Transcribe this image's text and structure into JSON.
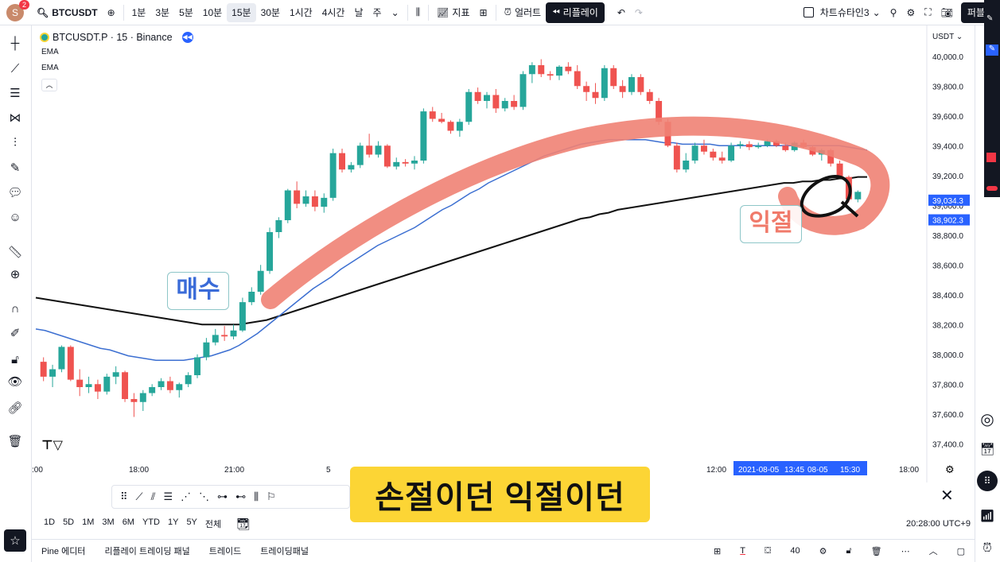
{
  "topbar": {
    "avatar_letter": "S",
    "avatar_badge": "2",
    "symbol": "BTCUSDT",
    "intervals": [
      "1분",
      "3분",
      "5분",
      "10분",
      "15분",
      "30분",
      "1시간",
      "4시간",
      "날",
      "주"
    ],
    "active_interval": "15분",
    "indicators_label": "지표",
    "alerts_label": "얼러트",
    "replay_label": "리플레이",
    "layout_name": "차트슈타인3",
    "publish_label": "퍼블리"
  },
  "chart_header": {
    "title": "BTCUSDT.P · 15 · Binance",
    "ema1": "EMA",
    "ema2": "EMA",
    "currency": "USDT"
  },
  "chart_data": {
    "type": "candlestick",
    "ylim": [
      37300,
      40100
    ],
    "y_ticks": [
      "40,000.0",
      "39,800.0",
      "39,600.0",
      "39,400.0",
      "39,200.0",
      "39,000.0",
      "38,800.0",
      "38,600.0",
      "38,400.0",
      "38,200.0",
      "38,000.0",
      "37,800.0",
      "37,600.0",
      "37,400.0"
    ],
    "x_ticks": [
      ":00",
      "18:00",
      "21:00",
      "5",
      "12:00",
      "18:00"
    ],
    "price_labels": [
      "39,034.3",
      "38,902.3"
    ],
    "crosshair_time_labels": [
      "2021-08-05",
      "13:45",
      "08-05",
      "15:30"
    ],
    "candles": [
      [
        37950,
        37980,
        37820,
        37850
      ],
      [
        37850,
        37930,
        37780,
        37900
      ],
      [
        37900,
        38060,
        37880,
        38050
      ],
      [
        38050,
        38060,
        37820,
        37830
      ],
      [
        37830,
        37900,
        37720,
        37780
      ],
      [
        37780,
        37850,
        37740,
        37800
      ],
      [
        37800,
        37830,
        37700,
        37750
      ],
      [
        37750,
        37870,
        37730,
        37850
      ],
      [
        37850,
        37920,
        37800,
        37880
      ],
      [
        37880,
        37890,
        37680,
        37700
      ],
      [
        37700,
        37740,
        37580,
        37680
      ],
      [
        37680,
        37760,
        37620,
        37740
      ],
      [
        37740,
        37800,
        37720,
        37780
      ],
      [
        37780,
        37840,
        37760,
        37820
      ],
      [
        37820,
        37850,
        37740,
        37760
      ],
      [
        37760,
        37810,
        37710,
        37800
      ],
      [
        37800,
        37880,
        37780,
        37860
      ],
      [
        37860,
        38000,
        37840,
        37980
      ],
      [
        37980,
        38110,
        37960,
        38080
      ],
      [
        38080,
        38170,
        38060,
        38130
      ],
      [
        38130,
        38190,
        38090,
        38120
      ],
      [
        38120,
        38200,
        38100,
        38160
      ],
      [
        38160,
        38380,
        38150,
        38350
      ],
      [
        38350,
        38450,
        38330,
        38420
      ],
      [
        38420,
        38600,
        38400,
        38560
      ],
      [
        38560,
        38850,
        38540,
        38820
      ],
      [
        38820,
        38920,
        38780,
        38900
      ],
      [
        38900,
        39110,
        38880,
        39100
      ],
      [
        39100,
        39160,
        38980,
        39010
      ],
      [
        39010,
        39100,
        38990,
        39060
      ],
      [
        39060,
        39100,
        38960,
        38990
      ],
      [
        38990,
        39080,
        38950,
        39050
      ],
      [
        39050,
        39380,
        39030,
        39350
      ],
      [
        39350,
        39380,
        39220,
        39240
      ],
      [
        39240,
        39290,
        39220,
        39270
      ],
      [
        39270,
        39420,
        39250,
        39400
      ],
      [
        39400,
        39480,
        39320,
        39340
      ],
      [
        39340,
        39430,
        39320,
        39400
      ],
      [
        39400,
        39410,
        39250,
        39260
      ],
      [
        39260,
        39320,
        39240,
        39290
      ],
      [
        39290,
        39310,
        39260,
        39280
      ],
      [
        39280,
        39330,
        39240,
        39300
      ],
      [
        39300,
        39650,
        39280,
        39630
      ],
      [
        39630,
        39660,
        39560,
        39580
      ],
      [
        39580,
        39620,
        39550,
        39560
      ],
      [
        39560,
        39570,
        39480,
        39500
      ],
      [
        39500,
        39580,
        39460,
        39560
      ],
      [
        39560,
        39780,
        39540,
        39760
      ],
      [
        39760,
        39790,
        39680,
        39700
      ],
      [
        39700,
        39760,
        39650,
        39740
      ],
      [
        39740,
        39780,
        39620,
        39650
      ],
      [
        39650,
        39720,
        39630,
        39700
      ],
      [
        39700,
        39740,
        39640,
        39660
      ],
      [
        39660,
        39900,
        39640,
        39880
      ],
      [
        39880,
        39960,
        39820,
        39940
      ],
      [
        39940,
        39980,
        39860,
        39880
      ],
      [
        39880,
        39900,
        39840,
        39870
      ],
      [
        39870,
        39940,
        39840,
        39930
      ],
      [
        39930,
        39960,
        39880,
        39900
      ],
      [
        39900,
        39940,
        39780,
        39800
      ],
      [
        39800,
        39830,
        39700,
        39760
      ],
      [
        39760,
        39820,
        39680,
        39720
      ],
      [
        39720,
        39940,
        39700,
        39920
      ],
      [
        39920,
        39940,
        39780,
        39800
      ],
      [
        39800,
        39840,
        39720,
        39760
      ],
      [
        39760,
        39880,
        39740,
        39860
      ],
      [
        39860,
        39880,
        39740,
        39760
      ],
      [
        39760,
        39780,
        39680,
        39700
      ],
      [
        39700,
        39720,
        39540,
        39560
      ],
      [
        39560,
        39580,
        39390,
        39400
      ],
      [
        39400,
        39420,
        39220,
        39240
      ],
      [
        39240,
        39350,
        39220,
        39300
      ],
      [
        39300,
        39420,
        39280,
        39400
      ],
      [
        39400,
        39440,
        39340,
        39360
      ],
      [
        39360,
        39380,
        39300,
        39320
      ],
      [
        39320,
        39360,
        39280,
        39300
      ],
      [
        39300,
        39420,
        39290,
        39400
      ],
      [
        39400,
        39430,
        39380,
        39410
      ],
      [
        39410,
        39430,
        39370,
        39390
      ],
      [
        39390,
        39420,
        39380,
        39400
      ],
      [
        39400,
        39440,
        39390,
        39430
      ],
      [
        39430,
        39440,
        39390,
        39400
      ],
      [
        39400,
        39420,
        39360,
        39370
      ],
      [
        39370,
        39430,
        39360,
        39420
      ],
      [
        39420,
        39440,
        39380,
        39390
      ],
      [
        39390,
        39400,
        39330,
        39340
      ],
      [
        39340,
        39380,
        39300,
        39370
      ],
      [
        39370,
        39380,
        39260,
        39280
      ],
      [
        39280,
        39300,
        39180,
        39190
      ],
      [
        39190,
        39200,
        39020,
        39040
      ],
      [
        39040,
        39100,
        39020,
        39090
      ]
    ],
    "ema_blue": [
      38170,
      38160,
      38140,
      38120,
      38100,
      38080,
      38060,
      38040,
      38030,
      38010,
      37990,
      37980,
      37970,
      37960,
      37960,
      37960,
      37960,
      37970,
      37980,
      37990,
      38010,
      38030,
      38060,
      38100,
      38140,
      38190,
      38240,
      38290,
      38340,
      38390,
      38440,
      38480,
      38520,
      38570,
      38610,
      38650,
      38690,
      38730,
      38760,
      38790,
      38820,
      38850,
      38890,
      38930,
      38970,
      39000,
      39040,
      39080,
      39110,
      39150,
      39180,
      39210,
      39240,
      39270,
      39300,
      39330,
      39350,
      39370,
      39390,
      39410,
      39420,
      39430,
      39440,
      39440,
      39440,
      39440,
      39440,
      39430,
      39420,
      39420,
      39410,
      39410,
      39410,
      39410,
      39400,
      39400,
      39400,
      39400,
      39400,
      39400,
      39400,
      39400,
      39400,
      39400,
      39400,
      39400,
      39400,
      39400,
      39390,
      39380,
      39370
    ],
    "ema_black": [
      38380,
      38370,
      38360,
      38350,
      38340,
      38330,
      38320,
      38310,
      38300,
      38290,
      38280,
      38270,
      38260,
      38250,
      38240,
      38230,
      38220,
      38210,
      38200,
      38200,
      38200,
      38200,
      38200,
      38210,
      38220,
      38230,
      38250,
      38270,
      38290,
      38310,
      38330,
      38350,
      38370,
      38390,
      38410,
      38430,
      38450,
      38470,
      38490,
      38510,
      38530,
      38550,
      38570,
      38590,
      38610,
      38630,
      38650,
      38670,
      38690,
      38710,
      38730,
      38750,
      38770,
      38790,
      38810,
      38830,
      38850,
      38870,
      38890,
      38910,
      38920,
      38940,
      38950,
      38970,
      38980,
      38990,
      39000,
      39010,
      39020,
      39030,
      39040,
      39050,
      39060,
      39070,
      39080,
      39090,
      39100,
      39110,
      39120,
      39130,
      39140,
      39150,
      39150,
      39160,
      39160,
      39170,
      39170,
      39180,
      39180,
      39190,
      39190
    ]
  },
  "annotations": {
    "buy_label": "매수",
    "take_profit_label": "익절"
  },
  "bottombar": {
    "ranges": [
      "1D",
      "5D",
      "1M",
      "3M",
      "6M",
      "YTD",
      "1Y",
      "5Y",
      "전체"
    ],
    "clock": "20:28:00 UTC+9"
  },
  "footer": {
    "tabs": [
      "Pine 에디터",
      "리플레이 트레이딩 패널",
      "트레이드",
      "트레이딩패널"
    ],
    "size_value": "40"
  },
  "subtitle": "손절이던 익절이던",
  "colors": {
    "up": "#26a69a",
    "down": "#ef5350",
    "ema_blue": "#3c6fd1",
    "ema_black": "#111111",
    "marker": "#f08274",
    "subtitle_bg": "#fcd535"
  }
}
